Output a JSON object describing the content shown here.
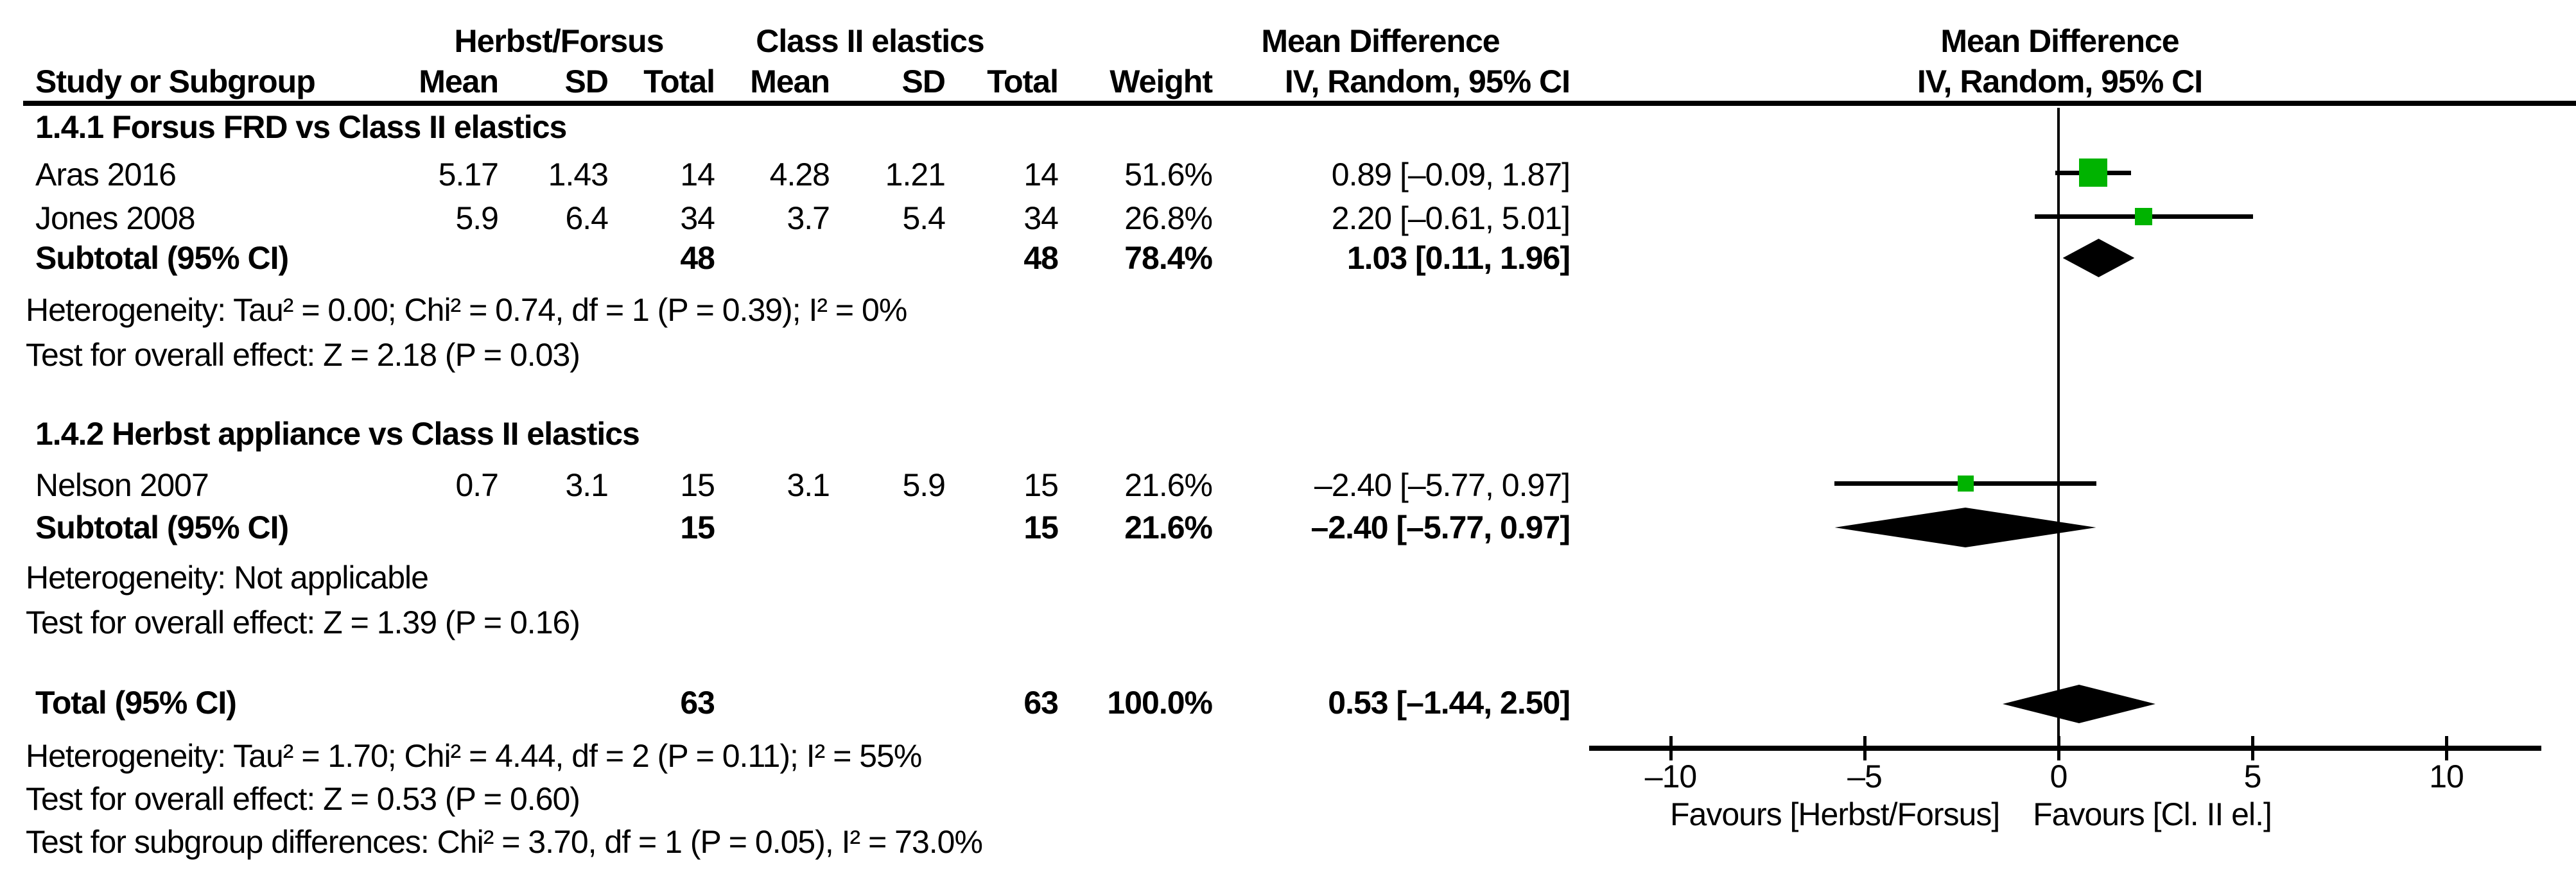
{
  "header": {
    "group_left": "Herbst/Forsus",
    "group_right": "Class II elastics",
    "effect_title": "Mean Difference",
    "effect_sub": "IV, Random, 95% CI",
    "plot_title": "Mean Difference",
    "plot_sub": "IV, Random, 95% CI",
    "study": "Study or Subgroup",
    "mean1": "Mean",
    "sd1": "SD",
    "total1": "Total",
    "mean2": "Mean",
    "sd2": "SD",
    "total2": "Total",
    "weight": "Weight"
  },
  "group1": {
    "title": "1.4.1 Forsus FRD vs Class II elastics",
    "rows": [
      {
        "study": "Aras 2016",
        "mean1": "5.17",
        "sd1": "1.43",
        "total1": "14",
        "mean2": "4.28",
        "sd2": "1.21",
        "total2": "14",
        "weight": "51.6%",
        "ci": "0.89 [–0.09, 1.87]"
      },
      {
        "study": "Jones 2008",
        "mean1": "5.9",
        "sd1": "6.4",
        "total1": "34",
        "mean2": "3.7",
        "sd2": "5.4",
        "total2": "34",
        "weight": "26.8%",
        "ci": "2.20 [–0.61, 5.01]"
      }
    ],
    "subtotal": {
      "study": "Subtotal (95% CI)",
      "total1": "48",
      "total2": "48",
      "weight": "78.4%",
      "ci": "1.03 [0.11, 1.96]"
    },
    "heterogeneity": "Heterogeneity: Tau² = 0.00; Chi² = 0.74, df = 1 (P = 0.39); I² = 0%",
    "overall_effect": "Test for overall effect: Z = 2.18 (P = 0.03)"
  },
  "group2": {
    "title": "1.4.2 Herbst appliance vs Class II elastics",
    "rows": [
      {
        "study": "Nelson 2007",
        "mean1": "0.7",
        "sd1": "3.1",
        "total1": "15",
        "mean2": "3.1",
        "sd2": "5.9",
        "total2": "15",
        "weight": "21.6%",
        "ci": "–2.40 [–5.77, 0.97]"
      }
    ],
    "subtotal": {
      "study": "Subtotal (95% CI)",
      "total1": "15",
      "total2": "15",
      "weight": "21.6%",
      "ci": "–2.40 [–5.77, 0.97]"
    },
    "heterogeneity": "Heterogeneity: Not applicable",
    "overall_effect": "Test for overall effect: Z = 1.39 (P = 0.16)"
  },
  "total_row": {
    "study": "Total (95% CI)",
    "total1": "63",
    "total2": "63",
    "weight": "100.0%",
    "ci": "0.53 [–1.44, 2.50]"
  },
  "footer": {
    "heterogeneity": "Heterogeneity: Tau² = 1.70; Chi² = 4.44, df = 2 (P = 0.11); I² = 55%",
    "overall_effect": "Test for overall effect: Z = 0.53 (P = 0.60)",
    "subgroup_differences": "Test for subgroup differences: Chi² = 3.70, df = 1 (P = 0.05), I² = 73.0%"
  },
  "chart_data": {
    "type": "forest",
    "title": "Mean Difference",
    "effect_measure": "IV, Random, 95% CI",
    "x_ticks": [
      -10,
      -5,
      0,
      5,
      10
    ],
    "x_tick_labels": [
      "–10",
      "–5",
      "0",
      "5",
      "10"
    ],
    "x_range": [
      -12.1,
      12.4
    ],
    "favours_left": "Favours [Herbst/Forsus]",
    "favours_right": "Favours [Cl. II el.]",
    "marker_color": "#00b300",
    "studies": [
      {
        "label": "Aras 2016",
        "estimate": 0.89,
        "ci_low": -0.09,
        "ci_high": 1.87,
        "weight_pct": 51.6,
        "subgroup": "1.4.1"
      },
      {
        "label": "Jones 2008",
        "estimate": 2.2,
        "ci_low": -0.61,
        "ci_high": 5.01,
        "weight_pct": 26.8,
        "subgroup": "1.4.1"
      },
      {
        "label": "Nelson 2007",
        "estimate": -2.4,
        "ci_low": -5.77,
        "ci_high": 0.97,
        "weight_pct": 21.6,
        "subgroup": "1.4.2"
      }
    ],
    "diamonds": [
      {
        "label": "Subtotal 1.4.1",
        "estimate": 1.03,
        "ci_low": 0.11,
        "ci_high": 1.96
      },
      {
        "label": "Subtotal 1.4.2",
        "estimate": -2.4,
        "ci_low": -5.77,
        "ci_high": 0.97
      },
      {
        "label": "Total",
        "estimate": 0.53,
        "ci_low": -1.44,
        "ci_high": 2.5
      }
    ]
  }
}
